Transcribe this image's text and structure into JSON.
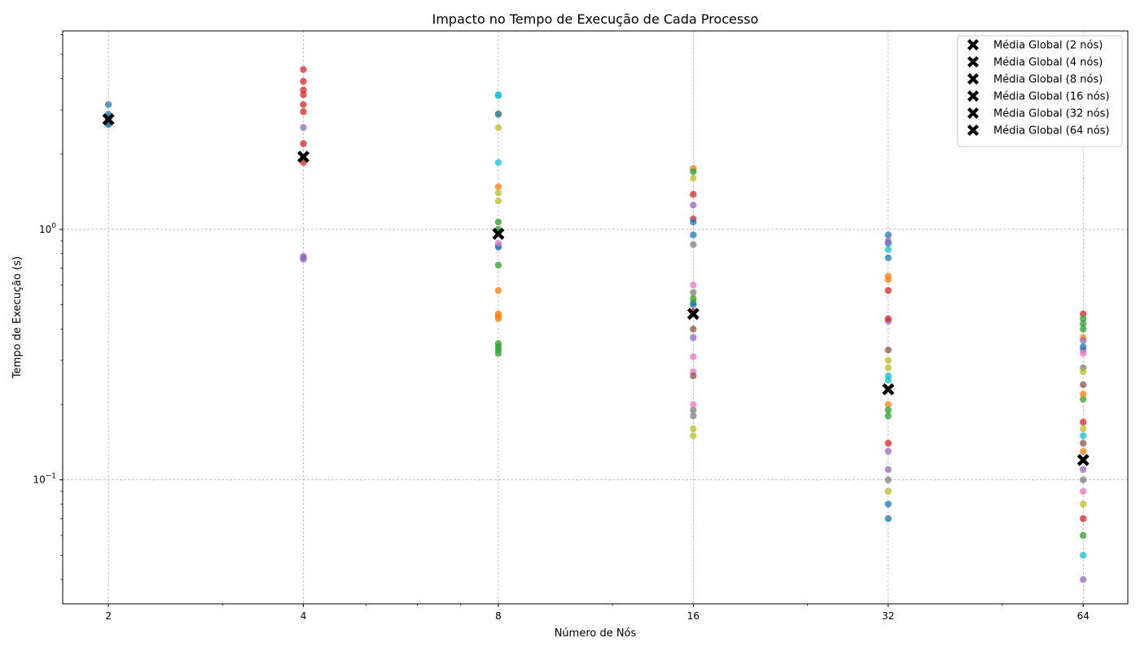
{
  "chart_data": {
    "type": "scatter",
    "title": "Impacto no Tempo de Execução de Cada Processo",
    "xlabel": "Número de Nós",
    "ylabel": "Tempo de Execução (s)",
    "x_scale": "log2",
    "y_scale": "log10",
    "xlim": [
      1.7,
      75
    ],
    "ylim": [
      0.032,
      6.2
    ],
    "grid": true,
    "legend_position": "top-right",
    "x_ticks": [
      {
        "value": 2,
        "label": "2"
      },
      {
        "value": 4,
        "label": "4"
      },
      {
        "value": 8,
        "label": "8"
      },
      {
        "value": 16,
        "label": "16"
      },
      {
        "value": 32,
        "label": "32"
      },
      {
        "value": 64,
        "label": "64"
      }
    ],
    "y_ticks": [
      {
        "value": 1,
        "base": "10",
        "exp": "0"
      },
      {
        "value": 0.1,
        "base": "10",
        "exp": "−1"
      }
    ],
    "process_points": [
      {
        "nodes": 2,
        "color": "#1f77b4",
        "values": [
          3.15,
          2.88,
          2.78,
          2.7,
          2.65,
          2.62
        ]
      },
      {
        "nodes": 4,
        "color": "#d62728",
        "values": [
          4.35,
          3.9,
          3.6,
          3.45,
          3.15,
          2.95,
          2.2,
          1.85
        ]
      },
      {
        "nodes": 4,
        "color": "#9467bd",
        "values": [
          2.55,
          0.78,
          0.77,
          0.76
        ]
      },
      {
        "nodes": 8,
        "color": "#17becf",
        "values": [
          3.45,
          3.42,
          1.85,
          0.98
        ]
      },
      {
        "nodes": 8,
        "color": "#bcbd22",
        "values": [
          2.9,
          2.55,
          1.4,
          1.3
        ]
      },
      {
        "nodes": 8,
        "color": "#1f77b4",
        "values": [
          2.88,
          0.86,
          0.85
        ]
      },
      {
        "nodes": 8,
        "color": "#ff7f0e",
        "values": [
          1.48,
          0.57,
          0.46,
          0.45,
          0.44
        ]
      },
      {
        "nodes": 8,
        "color": "#2ca02c",
        "values": [
          1.07,
          1.0,
          0.72,
          0.35,
          0.34,
          0.33,
          0.32
        ]
      },
      {
        "nodes": 8,
        "color": "#e377c2",
        "values": [
          0.88
        ]
      },
      {
        "nodes": 16,
        "color": "#ff7f0e",
        "values": [
          1.75
        ]
      },
      {
        "nodes": 16,
        "color": "#2ca02c",
        "values": [
          1.7,
          0.53,
          0.51
        ]
      },
      {
        "nodes": 16,
        "color": "#bcbd22",
        "values": [
          1.6,
          0.16,
          0.15
        ]
      },
      {
        "nodes": 16,
        "color": "#d62728",
        "values": [
          1.38,
          1.1,
          0.47
        ]
      },
      {
        "nodes": 16,
        "color": "#9467bd",
        "values": [
          1.25,
          0.37
        ]
      },
      {
        "nodes": 16,
        "color": "#1f77b4",
        "values": [
          1.07,
          0.95,
          0.5
        ]
      },
      {
        "nodes": 16,
        "color": "#7f7f7f",
        "values": [
          0.87,
          0.56,
          0.19,
          0.18
        ]
      },
      {
        "nodes": 16,
        "color": "#e377c2",
        "values": [
          0.6,
          0.31,
          0.27,
          0.2
        ]
      },
      {
        "nodes": 16,
        "color": "#8c564b",
        "values": [
          0.4,
          0.26
        ]
      },
      {
        "nodes": 32,
        "color": "#1f77b4",
        "values": [
          0.95,
          0.88,
          0.77,
          0.08,
          0.07
        ]
      },
      {
        "nodes": 32,
        "color": "#9467bd",
        "values": [
          0.9,
          0.43,
          0.13,
          0.11
        ]
      },
      {
        "nodes": 32,
        "color": "#17becf",
        "values": [
          0.83,
          0.26,
          0.25
        ]
      },
      {
        "nodes": 32,
        "color": "#ff7f0e",
        "values": [
          0.65,
          0.63,
          0.2
        ]
      },
      {
        "nodes": 32,
        "color": "#d62728",
        "values": [
          0.57,
          0.44,
          0.14
        ]
      },
      {
        "nodes": 32,
        "color": "#8c564b",
        "values": [
          0.33
        ]
      },
      {
        "nodes": 32,
        "color": "#bcbd22",
        "values": [
          0.3,
          0.28,
          0.09
        ]
      },
      {
        "nodes": 32,
        "color": "#2ca02c",
        "values": [
          0.19,
          0.18
        ]
      },
      {
        "nodes": 32,
        "color": "#7f7f7f",
        "values": [
          0.1
        ]
      },
      {
        "nodes": 64,
        "color": "#d62728",
        "values": [
          0.46,
          0.17,
          0.07
        ]
      },
      {
        "nodes": 64,
        "color": "#2ca02c",
        "values": [
          0.44,
          0.42,
          0.4,
          0.21,
          0.06
        ]
      },
      {
        "nodes": 64,
        "color": "#ff7f0e",
        "values": [
          0.37,
          0.22,
          0.13
        ]
      },
      {
        "nodes": 64,
        "color": "#9467bd",
        "values": [
          0.36,
          0.33,
          0.11,
          0.04
        ]
      },
      {
        "nodes": 64,
        "color": "#7f7f7f",
        "values": [
          0.28,
          0.1
        ]
      },
      {
        "nodes": 64,
        "color": "#bcbd22",
        "values": [
          0.27,
          0.16,
          0.08
        ]
      },
      {
        "nodes": 64,
        "color": "#e377c2",
        "values": [
          0.32,
          0.09
        ]
      },
      {
        "nodes": 64,
        "color": "#8c564b",
        "values": [
          0.24,
          0.14
        ]
      },
      {
        "nodes": 64,
        "color": "#17becf",
        "values": [
          0.15,
          0.05
        ]
      },
      {
        "nodes": 64,
        "color": "#1f77b4",
        "values": [
          0.34
        ]
      }
    ],
    "series": [
      {
        "name": "Média Global (2 nós)",
        "x": 2,
        "y": 2.75
      },
      {
        "name": "Média Global (4 nós)",
        "x": 4,
        "y": 1.95
      },
      {
        "name": "Média Global (8 nós)",
        "x": 8,
        "y": 0.96
      },
      {
        "name": "Média Global (16 nós)",
        "x": 16,
        "y": 0.46
      },
      {
        "name": "Média Global (32 nós)",
        "x": 32,
        "y": 0.23
      },
      {
        "name": "Média Global (64 nós)",
        "x": 64,
        "y": 0.12
      }
    ],
    "mean_marker_color": "#000000"
  }
}
